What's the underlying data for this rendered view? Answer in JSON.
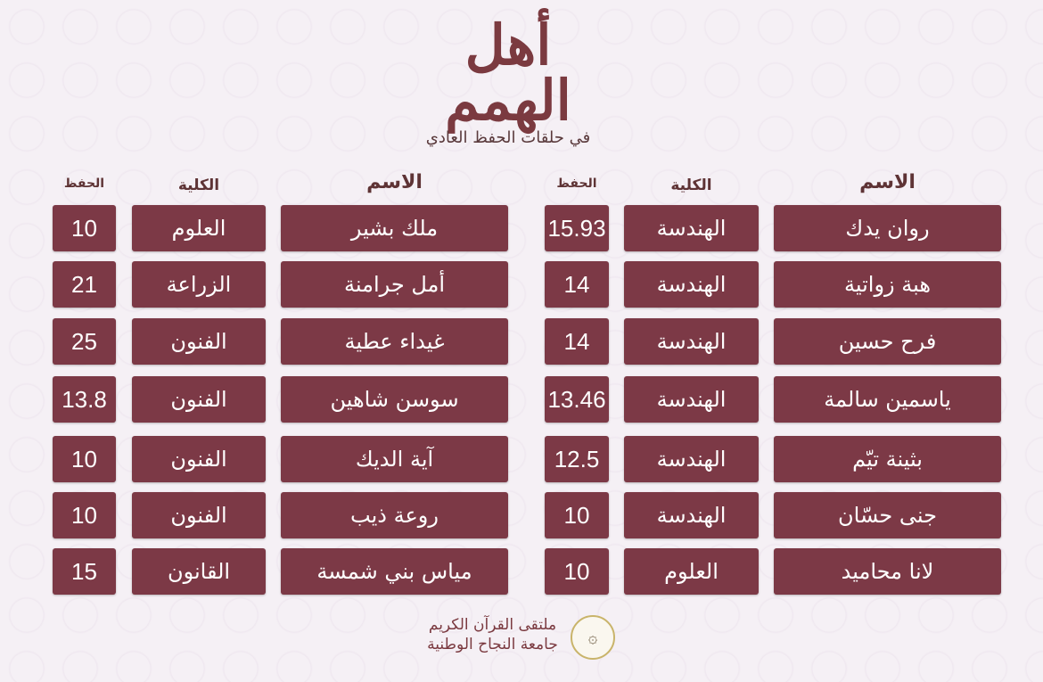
{
  "header": {
    "title": "أهل الهمم",
    "subtitle": "في حلقات الحفظ العادي"
  },
  "columns": {
    "name": "الاسم",
    "college": "الكلية",
    "score": "الحفظ"
  },
  "right_table": [
    {
      "name": "روان يدك",
      "college": "الهندسة",
      "score": "15.93"
    },
    {
      "name": "هبة زواتية",
      "college": "الهندسة",
      "score": "14"
    },
    {
      "name": "فرح حسين",
      "college": "الهندسة",
      "score": "14"
    },
    {
      "name": "ياسمين سالمة",
      "college": "الهندسة",
      "score": "13.46"
    },
    {
      "name": "بثينة تيّم",
      "college": "الهندسة",
      "score": "12.5"
    },
    {
      "name": "جنى حسّان",
      "college": "الهندسة",
      "score": "10"
    },
    {
      "name": "لانا محاميد",
      "college": "العلوم",
      "score": "10"
    }
  ],
  "left_table": [
    {
      "name": "ملك بشير",
      "college": "العلوم",
      "score": "10"
    },
    {
      "name": "أمل جرامنة",
      "college": "الزراعة",
      "score": "21"
    },
    {
      "name": "غيداء عطية",
      "college": "الفنون",
      "score": "25"
    },
    {
      "name": "سوسن شاهين",
      "college": "الفنون",
      "score": "13.8"
    },
    {
      "name": "آية الديك",
      "college": "الفنون",
      "score": "10"
    },
    {
      "name": "روعة ذيب",
      "college": "الفنون",
      "score": "10"
    },
    {
      "name": "مياس بني شمسة",
      "college": "القانون",
      "score": "15"
    }
  ],
  "footer": {
    "line1": "ملتقى القرآن الكريم",
    "line2": "جامعة النجاح الوطنية",
    "logo_icon": "university-seal-icon"
  },
  "colors": {
    "cell": "#7c3946",
    "title": "#7b3a40",
    "background": "#f5f0f5"
  }
}
